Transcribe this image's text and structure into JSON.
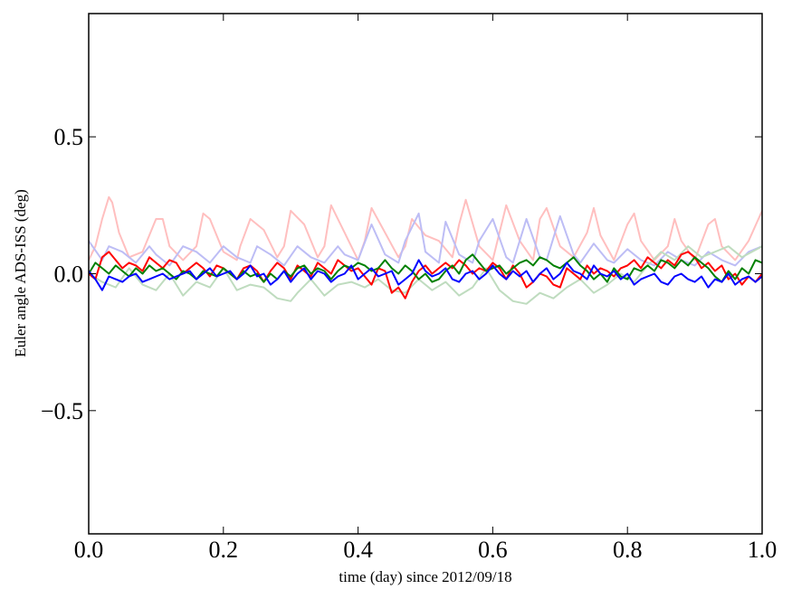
{
  "chart_data": {
    "type": "line",
    "title": "",
    "xlabel": "time (day) since 2012/09/18",
    "ylabel": "Euler angle ADS-ISS (deg)",
    "xlim": [
      0.0,
      1.0
    ],
    "ylim": [
      -0.95,
      0.95
    ],
    "grid": false,
    "x_ticks": [
      0.0,
      0.2,
      0.4,
      0.6,
      0.8,
      1.0
    ],
    "x_tick_labels": [
      "0.0",
      "0.2",
      "0.4",
      "0.6",
      "0.8",
      "1.0"
    ],
    "y_ticks": [
      -0.5,
      0.0,
      0.5
    ],
    "y_tick_labels": [
      "−0.5",
      "0.0",
      "0.5"
    ],
    "series": [
      {
        "color": "#ffbfbf",
        "opacity": 1.0,
        "width": 2,
        "x": [
          0.0,
          0.01,
          0.02,
          0.03,
          0.035,
          0.045,
          0.06,
          0.08,
          0.1,
          0.11,
          0.12,
          0.14,
          0.16,
          0.17,
          0.18,
          0.2,
          0.22,
          0.225,
          0.24,
          0.26,
          0.28,
          0.29,
          0.3,
          0.32,
          0.34,
          0.35,
          0.36,
          0.38,
          0.4,
          0.41,
          0.42,
          0.44,
          0.46,
          0.47,
          0.48,
          0.5,
          0.52,
          0.54,
          0.55,
          0.56,
          0.58,
          0.6,
          0.61,
          0.62,
          0.64,
          0.66,
          0.67,
          0.68,
          0.7,
          0.72,
          0.74,
          0.75,
          0.76,
          0.78,
          0.8,
          0.81,
          0.82,
          0.84,
          0.86,
          0.87,
          0.88,
          0.9,
          0.92,
          0.93,
          0.94,
          0.96,
          0.98,
          1.0
        ],
        "y": [
          0.05,
          0.1,
          0.2,
          0.28,
          0.26,
          0.15,
          0.06,
          0.08,
          0.2,
          0.2,
          0.1,
          0.05,
          0.1,
          0.22,
          0.2,
          0.08,
          0.05,
          0.1,
          0.2,
          0.16,
          0.06,
          0.1,
          0.23,
          0.18,
          0.06,
          0.1,
          0.25,
          0.15,
          0.05,
          0.12,
          0.24,
          0.15,
          0.06,
          0.1,
          0.2,
          0.14,
          0.12,
          0.06,
          0.18,
          0.27,
          0.1,
          0.05,
          0.15,
          0.25,
          0.12,
          0.05,
          0.2,
          0.24,
          0.1,
          0.06,
          0.15,
          0.24,
          0.14,
          0.05,
          0.18,
          0.22,
          0.12,
          0.05,
          0.1,
          0.2,
          0.12,
          0.05,
          0.18,
          0.2,
          0.1,
          0.05,
          0.12,
          0.23
        ]
      },
      {
        "color": "#bdbdf5",
        "opacity": 1.0,
        "width": 2,
        "x": [
          0.0,
          0.02,
          0.03,
          0.05,
          0.07,
          0.09,
          0.1,
          0.12,
          0.14,
          0.16,
          0.18,
          0.2,
          0.22,
          0.24,
          0.25,
          0.27,
          0.29,
          0.31,
          0.33,
          0.35,
          0.37,
          0.38,
          0.4,
          0.42,
          0.44,
          0.46,
          0.47,
          0.49,
          0.5,
          0.52,
          0.53,
          0.55,
          0.57,
          0.58,
          0.6,
          0.62,
          0.63,
          0.65,
          0.67,
          0.68,
          0.7,
          0.72,
          0.73,
          0.75,
          0.77,
          0.78,
          0.8,
          0.82,
          0.84,
          0.86,
          0.88,
          0.9,
          0.92,
          0.94,
          0.96,
          0.98,
          1.0
        ],
        "y": [
          0.12,
          0.05,
          0.1,
          0.08,
          0.04,
          0.1,
          0.07,
          0.03,
          0.1,
          0.08,
          0.04,
          0.1,
          0.06,
          0.04,
          0.1,
          0.07,
          0.03,
          0.1,
          0.06,
          0.04,
          0.1,
          0.07,
          0.05,
          0.18,
          0.07,
          0.04,
          0.12,
          0.22,
          0.08,
          0.04,
          0.19,
          0.07,
          0.04,
          0.12,
          0.2,
          0.06,
          0.04,
          0.2,
          0.06,
          0.05,
          0.21,
          0.07,
          0.04,
          0.11,
          0.05,
          0.04,
          0.09,
          0.05,
          0.03,
          0.08,
          0.05,
          0.03,
          0.08,
          0.05,
          0.03,
          0.08,
          0.1
        ]
      },
      {
        "color": "#bfdcbf",
        "opacity": 1.0,
        "width": 2,
        "x": [
          0.0,
          0.02,
          0.04,
          0.06,
          0.08,
          0.1,
          0.12,
          0.14,
          0.16,
          0.18,
          0.2,
          0.22,
          0.24,
          0.26,
          0.28,
          0.3,
          0.31,
          0.33,
          0.35,
          0.37,
          0.39,
          0.41,
          0.43,
          0.45,
          0.47,
          0.49,
          0.51,
          0.53,
          0.55,
          0.57,
          0.59,
          0.61,
          0.63,
          0.65,
          0.67,
          0.69,
          0.71,
          0.73,
          0.75,
          0.77,
          0.79,
          0.81,
          0.83,
          0.85,
          0.87,
          0.89,
          0.91,
          0.93,
          0.95,
          0.97,
          1.0
        ],
        "y": [
          0.0,
          -0.03,
          -0.05,
          0.02,
          -0.04,
          -0.06,
          0.0,
          -0.08,
          -0.03,
          -0.05,
          0.02,
          -0.06,
          -0.04,
          -0.05,
          -0.09,
          -0.1,
          -0.07,
          -0.02,
          -0.08,
          -0.04,
          -0.03,
          -0.05,
          -0.02,
          -0.06,
          -0.07,
          -0.02,
          -0.06,
          -0.03,
          -0.08,
          -0.05,
          0.02,
          -0.06,
          -0.1,
          -0.11,
          -0.07,
          -0.09,
          -0.05,
          -0.02,
          -0.07,
          -0.04,
          0.0,
          -0.03,
          0.03,
          0.08,
          0.05,
          0.1,
          0.06,
          0.08,
          0.1,
          0.06,
          0.1
        ]
      },
      {
        "color": "#ff0000",
        "opacity": 1.0,
        "width": 2,
        "x": [
          0.0,
          0.01,
          0.02,
          0.03,
          0.04,
          0.05,
          0.06,
          0.07,
          0.08,
          0.09,
          0.1,
          0.11,
          0.12,
          0.13,
          0.14,
          0.15,
          0.16,
          0.17,
          0.18,
          0.19,
          0.2,
          0.21,
          0.22,
          0.23,
          0.24,
          0.25,
          0.26,
          0.27,
          0.28,
          0.29,
          0.3,
          0.31,
          0.32,
          0.33,
          0.34,
          0.35,
          0.36,
          0.37,
          0.38,
          0.39,
          0.4,
          0.41,
          0.42,
          0.43,
          0.44,
          0.45,
          0.46,
          0.47,
          0.48,
          0.49,
          0.5,
          0.51,
          0.52,
          0.53,
          0.54,
          0.55,
          0.56,
          0.57,
          0.58,
          0.59,
          0.6,
          0.61,
          0.62,
          0.63,
          0.64,
          0.65,
          0.66,
          0.67,
          0.68,
          0.69,
          0.7,
          0.71,
          0.72,
          0.73,
          0.74,
          0.75,
          0.76,
          0.77,
          0.78,
          0.79,
          0.8,
          0.81,
          0.82,
          0.83,
          0.84,
          0.85,
          0.86,
          0.87,
          0.88,
          0.89,
          0.9,
          0.91,
          0.92,
          0.93,
          0.94,
          0.95,
          0.96,
          0.97,
          0.98,
          0.99,
          1.0
        ],
        "y": [
          0.0,
          -0.02,
          0.06,
          0.08,
          0.05,
          0.02,
          0.04,
          0.03,
          0.01,
          0.06,
          0.04,
          0.02,
          0.05,
          0.04,
          0.0,
          0.02,
          0.04,
          0.02,
          -0.01,
          0.03,
          0.02,
          0.0,
          -0.02,
          0.02,
          0.03,
          0.01,
          -0.03,
          0.01,
          0.04,
          0.02,
          -0.02,
          0.03,
          0.01,
          -0.01,
          0.04,
          0.02,
          0.0,
          0.05,
          0.03,
          0.01,
          0.02,
          -0.01,
          -0.04,
          0.02,
          0.01,
          -0.07,
          -0.05,
          -0.09,
          -0.03,
          0.01,
          0.03,
          0.0,
          0.02,
          0.04,
          0.02,
          0.05,
          0.03,
          0.0,
          0.02,
          0.01,
          0.04,
          0.02,
          -0.02,
          0.03,
          0.0,
          -0.05,
          -0.03,
          0.0,
          -0.01,
          -0.04,
          -0.05,
          0.02,
          0.0,
          -0.02,
          0.03,
          0.0,
          0.02,
          0.01,
          -0.01,
          0.02,
          0.03,
          0.05,
          0.02,
          0.06,
          0.04,
          0.02,
          0.05,
          0.03,
          0.07,
          0.08,
          0.06,
          0.02,
          0.04,
          0.01,
          0.03,
          -0.02,
          0.0,
          -0.04,
          -0.01,
          -0.03,
          0.0
        ]
      },
      {
        "color": "#008000",
        "opacity": 1.0,
        "width": 2,
        "x": [
          0.0,
          0.01,
          0.02,
          0.03,
          0.04,
          0.05,
          0.06,
          0.07,
          0.08,
          0.09,
          0.1,
          0.11,
          0.12,
          0.13,
          0.14,
          0.15,
          0.16,
          0.17,
          0.18,
          0.19,
          0.2,
          0.21,
          0.22,
          0.23,
          0.24,
          0.25,
          0.26,
          0.27,
          0.28,
          0.29,
          0.3,
          0.31,
          0.32,
          0.33,
          0.34,
          0.35,
          0.36,
          0.37,
          0.38,
          0.39,
          0.4,
          0.41,
          0.42,
          0.43,
          0.44,
          0.45,
          0.46,
          0.47,
          0.48,
          0.49,
          0.5,
          0.51,
          0.52,
          0.53,
          0.54,
          0.55,
          0.56,
          0.57,
          0.58,
          0.59,
          0.6,
          0.61,
          0.62,
          0.63,
          0.64,
          0.65,
          0.66,
          0.67,
          0.68,
          0.69,
          0.7,
          0.71,
          0.72,
          0.73,
          0.74,
          0.75,
          0.76,
          0.77,
          0.78,
          0.79,
          0.8,
          0.81,
          0.82,
          0.83,
          0.84,
          0.85,
          0.86,
          0.87,
          0.88,
          0.89,
          0.9,
          0.91,
          0.92,
          0.93,
          0.94,
          0.95,
          0.96,
          0.97,
          0.98,
          0.99,
          1.0
        ],
        "y": [
          0.0,
          0.04,
          0.02,
          0.0,
          0.03,
          0.01,
          -0.01,
          0.02,
          0.0,
          0.03,
          0.01,
          0.02,
          0.0,
          -0.02,
          0.01,
          0.0,
          -0.02,
          0.01,
          0.0,
          -0.01,
          0.02,
          0.0,
          -0.02,
          0.01,
          -0.01,
          0.0,
          -0.03,
          0.0,
          -0.02,
          0.01,
          -0.01,
          0.02,
          0.03,
          0.0,
          0.02,
          0.01,
          -0.02,
          0.01,
          0.03,
          0.02,
          0.04,
          0.03,
          0.01,
          0.02,
          0.05,
          0.02,
          0.0,
          0.03,
          0.01,
          -0.02,
          0.0,
          -0.03,
          -0.02,
          0.01,
          0.03,
          0.0,
          0.05,
          0.07,
          0.04,
          0.01,
          0.02,
          0.03,
          0.0,
          0.02,
          0.04,
          0.05,
          0.03,
          0.06,
          0.05,
          0.03,
          0.02,
          0.04,
          0.06,
          0.03,
          0.01,
          -0.02,
          0.0,
          -0.03,
          0.02,
          -0.01,
          -0.02,
          0.02,
          0.01,
          0.03,
          0.01,
          0.05,
          0.04,
          0.02,
          0.05,
          0.03,
          0.06,
          0.04,
          0.02,
          -0.01,
          -0.03,
          0.01,
          -0.02,
          0.02,
          0.0,
          0.05,
          0.04
        ]
      },
      {
        "color": "#0000ff",
        "opacity": 1.0,
        "width": 2,
        "x": [
          0.0,
          0.01,
          0.02,
          0.03,
          0.04,
          0.05,
          0.06,
          0.07,
          0.08,
          0.09,
          0.1,
          0.11,
          0.12,
          0.13,
          0.14,
          0.15,
          0.16,
          0.17,
          0.18,
          0.19,
          0.2,
          0.21,
          0.22,
          0.23,
          0.24,
          0.25,
          0.26,
          0.27,
          0.28,
          0.29,
          0.3,
          0.31,
          0.32,
          0.33,
          0.34,
          0.35,
          0.36,
          0.37,
          0.38,
          0.39,
          0.4,
          0.41,
          0.42,
          0.43,
          0.44,
          0.45,
          0.46,
          0.47,
          0.48,
          0.49,
          0.5,
          0.51,
          0.52,
          0.53,
          0.54,
          0.55,
          0.56,
          0.57,
          0.58,
          0.59,
          0.6,
          0.61,
          0.62,
          0.63,
          0.64,
          0.65,
          0.66,
          0.67,
          0.68,
          0.69,
          0.7,
          0.71,
          0.72,
          0.73,
          0.74,
          0.75,
          0.76,
          0.77,
          0.78,
          0.79,
          0.8,
          0.81,
          0.82,
          0.83,
          0.84,
          0.85,
          0.86,
          0.87,
          0.88,
          0.89,
          0.9,
          0.91,
          0.92,
          0.93,
          0.94,
          0.95,
          0.96,
          0.97,
          0.98,
          0.99,
          1.0
        ],
        "y": [
          0.01,
          -0.02,
          -0.06,
          -0.01,
          -0.02,
          -0.03,
          -0.01,
          0.0,
          -0.03,
          -0.02,
          -0.01,
          0.0,
          -0.02,
          -0.01,
          0.0,
          0.01,
          -0.02,
          0.0,
          0.02,
          -0.01,
          0.0,
          0.01,
          -0.02,
          0.0,
          0.03,
          -0.01,
          0.0,
          -0.04,
          -0.02,
          0.01,
          -0.03,
          0.0,
          0.02,
          -0.02,
          0.01,
          0.0,
          -0.03,
          -0.01,
          0.0,
          0.03,
          -0.02,
          0.0,
          0.02,
          -0.01,
          0.0,
          0.01,
          -0.04,
          -0.02,
          0.0,
          0.05,
          0.01,
          -0.01,
          0.0,
          0.02,
          -0.02,
          -0.03,
          0.0,
          0.01,
          -0.02,
          0.0,
          0.03,
          0.0,
          -0.02,
          0.01,
          -0.01,
          0.01,
          -0.03,
          0.0,
          0.02,
          -0.02,
          0.0,
          0.04,
          0.01,
          0.0,
          -0.02,
          0.03,
          0.0,
          -0.01,
          0.01,
          -0.02,
          0.0,
          -0.04,
          -0.02,
          -0.01,
          0.0,
          -0.03,
          -0.04,
          -0.01,
          0.0,
          -0.02,
          -0.03,
          -0.01,
          -0.05,
          -0.02,
          -0.03,
          0.0,
          -0.04,
          -0.02,
          -0.01,
          -0.03,
          -0.01
        ]
      }
    ]
  }
}
